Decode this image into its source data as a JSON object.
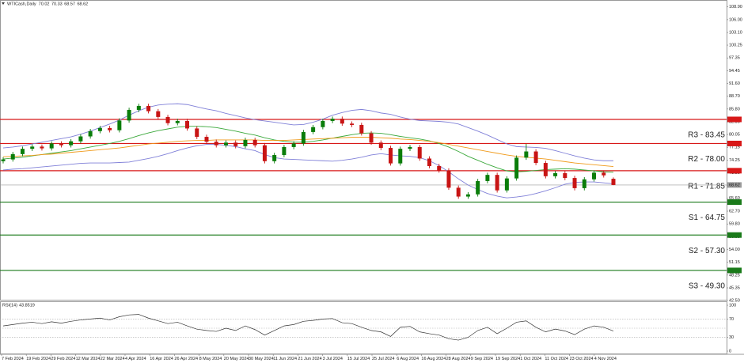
{
  "chart_data": {
    "type": "candlestick",
    "symbol": "WTICash,Daily",
    "x_labels": [
      "7 Feb 2024",
      "19 Feb 2024",
      "29 Feb 2024",
      "12 Mar 2024",
      "22 Mar 2024",
      "4 Apr 2024",
      "16 Apr 2024",
      "26 Apr 2024",
      "8 May 2024",
      "20 May 2024",
      "30 May 2024",
      "11 Jun 2024",
      "21 Jun 2024",
      "3 Jul 2024",
      "15 Jul 2024",
      "25 Jul 2024",
      "6 Aug 2024",
      "16 Aug 2024",
      "28 Aug 2024",
      "9 Sep 2024",
      "19 Sep 2024",
      "1 Oct 2024",
      "11 Oct 2024",
      "23 Oct 2024",
      "4 Nov 2024"
    ],
    "ylim": [
      42.85,
      110.45
    ],
    "yticks": [
      {
        "value": 108.9,
        "label": "108.90"
      },
      {
        "value": 106.0,
        "label": "106.00"
      },
      {
        "value": 103.1,
        "label": "103.10"
      },
      100.25,
      97.35,
      94.45,
      {
        "value": 91.6,
        "label": "91.60"
      },
      {
        "value": 88.7,
        "label": "88.70"
      },
      {
        "value": 85.8,
        "label": "85.80"
      },
      {
        "value": 82.9,
        "label": "82.90"
      },
      80.05,
      77.15,
      74.25,
      71.35,
      {
        "value": 68.5,
        "label": "68.50"
      },
      {
        "value": 65.6,
        "label": "65.60"
      },
      {
        "value": 62.7,
        "label": "62.70"
      },
      {
        "value": 59.8,
        "label": "59.80"
      },
      {
        "value": 56.9,
        "label": "56.90"
      },
      {
        "value": 54.0,
        "label": "54.00"
      },
      51.15,
      48.25,
      45.35,
      {
        "value": 42.5,
        "label": "42.50"
      }
    ],
    "up_color": "#0a7d0a",
    "down_color": "#c81414",
    "last_price_color": "#9a9a9a",
    "open": [
      74.0,
      74.4,
      75.6,
      76.8,
      77.3,
      76.9,
      78.0,
      77.6,
      78.5,
      79.6,
      80.8,
      81.5,
      81.0,
      83.2,
      85.6,
      86.5,
      85.3,
      84.0,
      82.6,
      83.1,
      81.4,
      79.5,
      78.4,
      77.6,
      78.2,
      77.4,
      78.8,
      77.6,
      74.0,
      75.4,
      77.2,
      78.0,
      80.6,
      81.7,
      83.1,
      83.6,
      82.5,
      82.2,
      80.3,
      78.2,
      77.0,
      73.5,
      76.8,
      77.2,
      74.6,
      72.9,
      71.9,
      68.0,
      66.0,
      66.5,
      69.5,
      70.9,
      67.4,
      70.1,
      74.8,
      76.2,
      73.6,
      70.6,
      71.3,
      70.2,
      67.9,
      69.9,
      71.4,
      70.02
    ],
    "high": [
      74.9,
      76.1,
      77.3,
      77.8,
      77.8,
      78.5,
      78.5,
      79.0,
      80.1,
      81.3,
      82.0,
      82.0,
      83.7,
      86.1,
      87.0,
      87.0,
      85.8,
      84.5,
      83.6,
      83.6,
      81.9,
      80.0,
      78.9,
      78.7,
      78.7,
      79.3,
      79.3,
      78.1,
      75.9,
      77.7,
      78.5,
      81.1,
      82.2,
      83.6,
      84.1,
      84.1,
      83.0,
      82.7,
      80.8,
      78.7,
      77.5,
      77.3,
      77.7,
      77.7,
      75.1,
      73.4,
      72.4,
      68.5,
      67.0,
      70.0,
      71.4,
      71.4,
      70.6,
      75.3,
      77.9,
      76.7,
      74.1,
      71.8,
      71.8,
      70.7,
      70.4,
      71.9,
      71.9,
      70.33
    ],
    "low": [
      73.5,
      73.9,
      75.1,
      76.3,
      76.4,
      76.4,
      77.1,
      77.1,
      78.0,
      79.1,
      80.3,
      80.5,
      80.5,
      82.7,
      85.1,
      84.8,
      83.5,
      82.1,
      82.1,
      80.9,
      79.0,
      77.9,
      77.1,
      77.1,
      76.9,
      76.9,
      77.1,
      73.5,
      73.5,
      74.9,
      76.7,
      77.5,
      80.1,
      81.2,
      82.6,
      82.0,
      81.7,
      79.8,
      77.7,
      76.5,
      73.0,
      73.0,
      76.3,
      74.1,
      72.4,
      71.4,
      67.5,
      65.5,
      65.5,
      66.0,
      69.0,
      66.9,
      66.9,
      69.6,
      74.3,
      73.1,
      70.1,
      70.1,
      69.7,
      67.4,
      67.4,
      69.4,
      70.3,
      68.57
    ],
    "close": [
      74.4,
      75.6,
      76.8,
      77.3,
      76.9,
      78.0,
      77.6,
      78.5,
      79.6,
      80.8,
      81.5,
      81.0,
      83.2,
      85.6,
      86.5,
      85.3,
      84.0,
      82.6,
      83.1,
      81.4,
      79.5,
      78.4,
      77.6,
      78.2,
      77.4,
      78.8,
      77.6,
      74.0,
      75.4,
      77.2,
      78.0,
      80.6,
      81.7,
      83.1,
      83.6,
      82.5,
      82.2,
      80.3,
      78.2,
      77.0,
      73.5,
      76.8,
      77.2,
      74.6,
      72.9,
      71.9,
      68.0,
      66.0,
      66.5,
      69.5,
      70.9,
      67.4,
      70.1,
      74.8,
      76.2,
      73.6,
      70.6,
      71.3,
      70.2,
      67.9,
      69.9,
      71.4,
      70.8,
      68.62
    ],
    "overlays": [
      {
        "color": "#8080d8",
        "values": [
          77.0,
          77.2,
          77.5,
          77.9,
          78.3,
          78.7,
          79.1,
          79.5,
          80.1,
          80.8,
          81.6,
          82.4,
          83.3,
          84.4,
          85.4,
          86.2,
          86.7,
          86.9,
          87.0,
          86.8,
          86.3,
          85.8,
          85.4,
          84.8,
          84.3,
          83.8,
          83.4,
          83.1,
          82.8,
          82.5,
          82.2,
          82.3,
          82.8,
          83.5,
          84.4,
          85.0,
          85.5,
          85.7,
          85.4,
          84.9,
          84.6,
          84.0,
          83.5,
          83.2,
          83.1,
          83.0,
          82.8,
          82.4,
          81.6,
          80.8,
          79.9,
          78.9,
          77.9,
          77.3,
          77.2,
          77.1,
          76.9,
          76.4,
          75.8,
          75.2,
          74.7,
          74.3,
          74.1,
          74.1
        ]
      },
      {
        "color": "#8080d8",
        "values": [
          72.0,
          72.2,
          72.3,
          72.5,
          72.7,
          72.9,
          73.1,
          73.3,
          73.5,
          73.6,
          73.6,
          73.6,
          73.7,
          73.8,
          74.2,
          74.6,
          75.1,
          75.7,
          76.4,
          77.0,
          77.5,
          77.8,
          77.8,
          77.6,
          77.3,
          76.8,
          76.4,
          75.5,
          74.8,
          74.5,
          74.4,
          74.3,
          74.2,
          74.1,
          74.0,
          74.2,
          74.5,
          74.9,
          75.4,
          75.7,
          75.4,
          75.2,
          75.1,
          74.8,
          74.1,
          73.0,
          71.6,
          70.0,
          68.6,
          67.6,
          66.7,
          66.1,
          65.7,
          65.9,
          66.2,
          66.7,
          67.3,
          68.0,
          68.8,
          69.2,
          69.3,
          69.3,
          69.1,
          68.9
        ]
      },
      {
        "color": "#3aa83a",
        "values": [
          74.5,
          74.7,
          74.9,
          75.2,
          75.5,
          75.8,
          76.1,
          76.4,
          76.8,
          77.2,
          77.6,
          78.0,
          78.5,
          79.1,
          79.8,
          80.4,
          80.9,
          81.3,
          81.7,
          81.9,
          81.9,
          81.8,
          81.6,
          81.2,
          80.8,
          80.3,
          79.9,
          79.3,
          78.8,
          78.5,
          78.3,
          78.3,
          78.5,
          78.8,
          79.2,
          79.6,
          80.0,
          80.3,
          80.4,
          80.3,
          80.0,
          79.6,
          79.3,
          79.0,
          78.6,
          78.0,
          77.2,
          76.2,
          75.1,
          74.2,
          73.3,
          72.5,
          71.8,
          71.6,
          71.7,
          71.9,
          72.1,
          72.2,
          72.3,
          72.2,
          72.0,
          71.8,
          71.6,
          71.5
        ]
      },
      {
        "color": "#f09a1a",
        "values": [
          75.0,
          75.1,
          75.2,
          75.3,
          75.5,
          75.6,
          75.8,
          76.0,
          76.2,
          76.4,
          76.6,
          76.8,
          77.0,
          77.3,
          77.6,
          77.9,
          78.1,
          78.3,
          78.5,
          78.6,
          78.7,
          78.7,
          78.8,
          78.8,
          78.8,
          78.8,
          78.8,
          78.7,
          78.7,
          78.7,
          78.8,
          78.9,
          79.0,
          79.1,
          79.2,
          79.3,
          79.4,
          79.4,
          79.4,
          79.3,
          79.2,
          79.0,
          78.9,
          78.7,
          78.5,
          78.2,
          77.8,
          77.4,
          77.0,
          76.6,
          76.2,
          75.8,
          75.4,
          75.1,
          74.9,
          74.7,
          74.5,
          74.2,
          73.9,
          73.6,
          73.4,
          73.2,
          73.0,
          72.8
        ]
      }
    ],
    "levels": [
      {
        "label": "R3 - 83.45",
        "value": 83.45,
        "color": "#d81818"
      },
      {
        "label": "R2 - 78.00",
        "value": 78.0,
        "color": "#d81818"
      },
      {
        "label": "R1 - 71.85",
        "value": 71.85,
        "color": "#d81818"
      },
      {
        "label": "S1 - 64.75",
        "value": 64.75,
        "color": "#1a7a1a"
      },
      {
        "label": "S2 - 57.30",
        "value": 57.3,
        "color": "#1a7a1a"
      },
      {
        "label": "S3 - 49.30",
        "value": 49.3,
        "color": "#1a7a1a"
      }
    ],
    "rsi": {
      "type": "line",
      "title": "RSI(14)",
      "color": "#333333",
      "ylim": [
        0,
        100
      ],
      "yticks": [
        0,
        30,
        70,
        100
      ],
      "levels": [
        30,
        50,
        70
      ],
      "values": [
        55,
        58,
        61,
        63,
        60,
        64,
        61,
        65,
        68,
        70,
        72,
        68,
        75,
        79,
        80,
        72,
        66,
        60,
        63,
        55,
        48,
        45,
        43,
        50,
        45,
        55,
        47,
        35,
        45,
        55,
        58,
        65,
        67,
        70,
        71,
        62,
        60,
        52,
        45,
        42,
        32,
        52,
        54,
        42,
        38,
        35,
        27,
        24,
        30,
        45,
        52,
        38,
        50,
        63,
        66,
        52,
        42,
        48,
        44,
        36,
        48,
        55,
        52,
        43.8519
      ]
    }
  }
}
